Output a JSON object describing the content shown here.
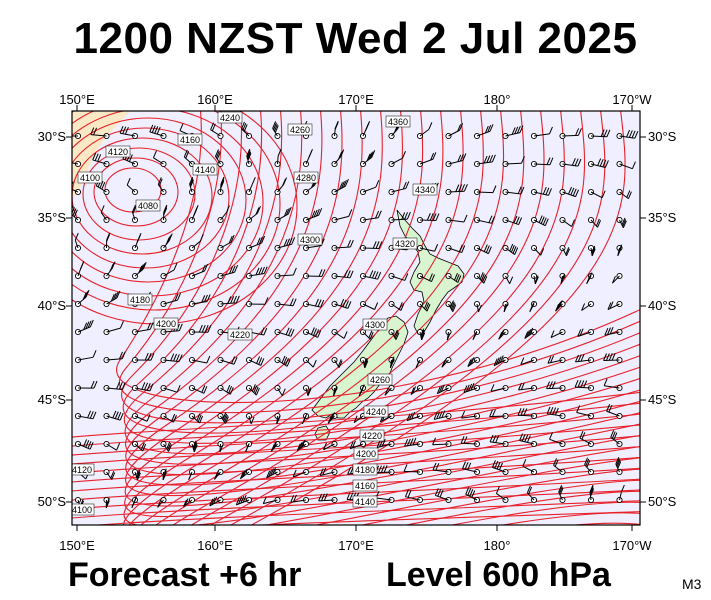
{
  "title": "1200 NZST Wed 2 Jul 2025",
  "footer": {
    "forecast": "Forecast +6 hr",
    "level": "Level 600 hPa",
    "tag": "M3"
  },
  "map": {
    "top_axis_labels": [
      "150°E",
      "160°E",
      "170°E",
      "180°",
      "170°W"
    ],
    "bottom_axis_labels": [
      "150°E",
      "160°E",
      "170°E",
      "180°",
      "170°W"
    ],
    "left_axis_labels": [
      "30°S",
      "35°S",
      "40°S",
      "45°S",
      "50°S"
    ],
    "right_axis_labels": [
      "30°S",
      "35°S",
      "40°S",
      "45°S",
      "50°S"
    ],
    "contour_labels": [
      "4100",
      "4080",
      "4120",
      "4140",
      "4160",
      "4180",
      "4200",
      "4220",
      "4240",
      "4260",
      "4280",
      "4300",
      "4320",
      "4340",
      "4360",
      "4300",
      "4260",
      "4240",
      "4220",
      "4200",
      "4180",
      "4160",
      "4140",
      "4120",
      "4100"
    ],
    "colors": {
      "ocean": "#efefff",
      "land": "#d8f5d0",
      "contour": "#e8202a",
      "low_fill": "#fbe8c4"
    }
  }
}
